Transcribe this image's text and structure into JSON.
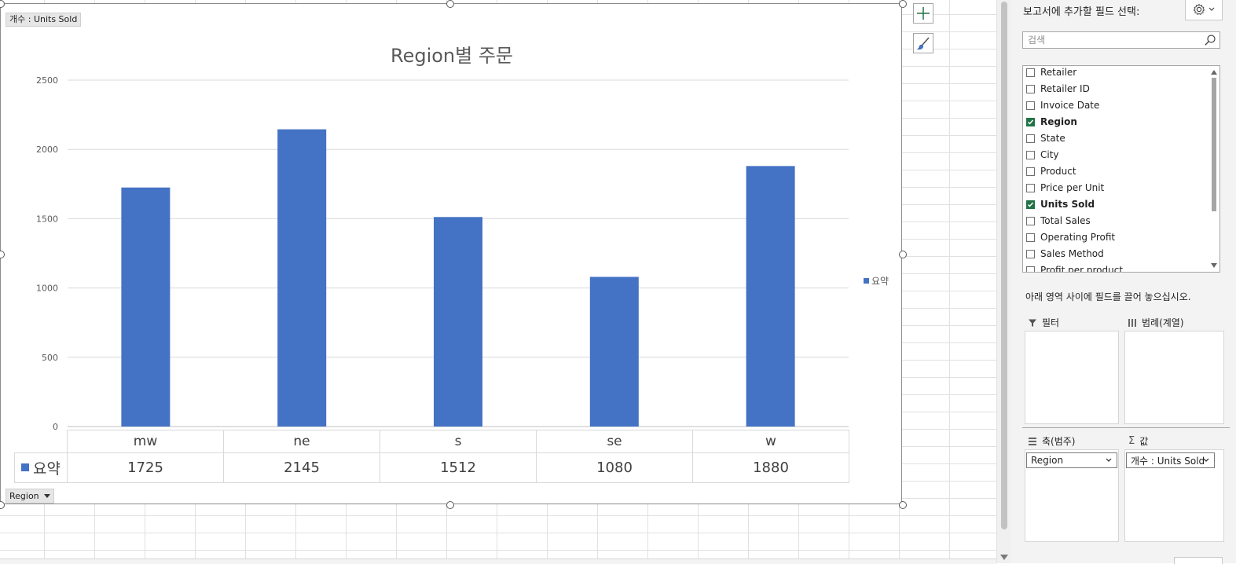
{
  "chart_tags": {
    "series_field": "개수 : Units Sold",
    "axis_field": "Region"
  },
  "chart_data": {
    "type": "bar",
    "title": "Region별 주문",
    "categories": [
      "mw",
      "ne",
      "s",
      "se",
      "w"
    ],
    "series": [
      {
        "name": "요약",
        "values": [
          1725,
          2145,
          1512,
          1080,
          1880
        ],
        "color": "#4472C4"
      }
    ],
    "ylim": [
      0,
      2500
    ],
    "yticks": [
      0,
      500,
      1000,
      1500,
      2000,
      2500
    ],
    "grid": true,
    "legend": "right",
    "data_table": true
  },
  "chart_buttons": {
    "add_element_icon": "plus-icon",
    "style_icon": "brush-icon"
  },
  "pane": {
    "header": "보고서에 추가할 필드 선택:",
    "settings_icon": "gear-icon",
    "search_placeholder": "검색",
    "fields": [
      {
        "label": "Retailer",
        "checked": false
      },
      {
        "label": "Retailer ID",
        "checked": false
      },
      {
        "label": "Invoice Date",
        "checked": false
      },
      {
        "label": "Region",
        "checked": true
      },
      {
        "label": "State",
        "checked": false
      },
      {
        "label": "City",
        "checked": false
      },
      {
        "label": "Product",
        "checked": false
      },
      {
        "label": "Price per Unit",
        "checked": false
      },
      {
        "label": "Units Sold",
        "checked": true
      },
      {
        "label": "Total Sales",
        "checked": false
      },
      {
        "label": "Operating Profit",
        "checked": false
      },
      {
        "label": "Sales Method",
        "checked": false
      },
      {
        "label": "Profit per product",
        "checked": false
      }
    ],
    "drag_hint": "아래 영역 사이에 필드를 끌어 놓으십시오.",
    "areas": {
      "filter": {
        "label": "필터"
      },
      "legend": {
        "label": "범례(계열)"
      },
      "axis": {
        "label": "축(범주)",
        "item": "Region"
      },
      "values": {
        "label": "값",
        "item": "개수 : Units Sold"
      }
    }
  }
}
